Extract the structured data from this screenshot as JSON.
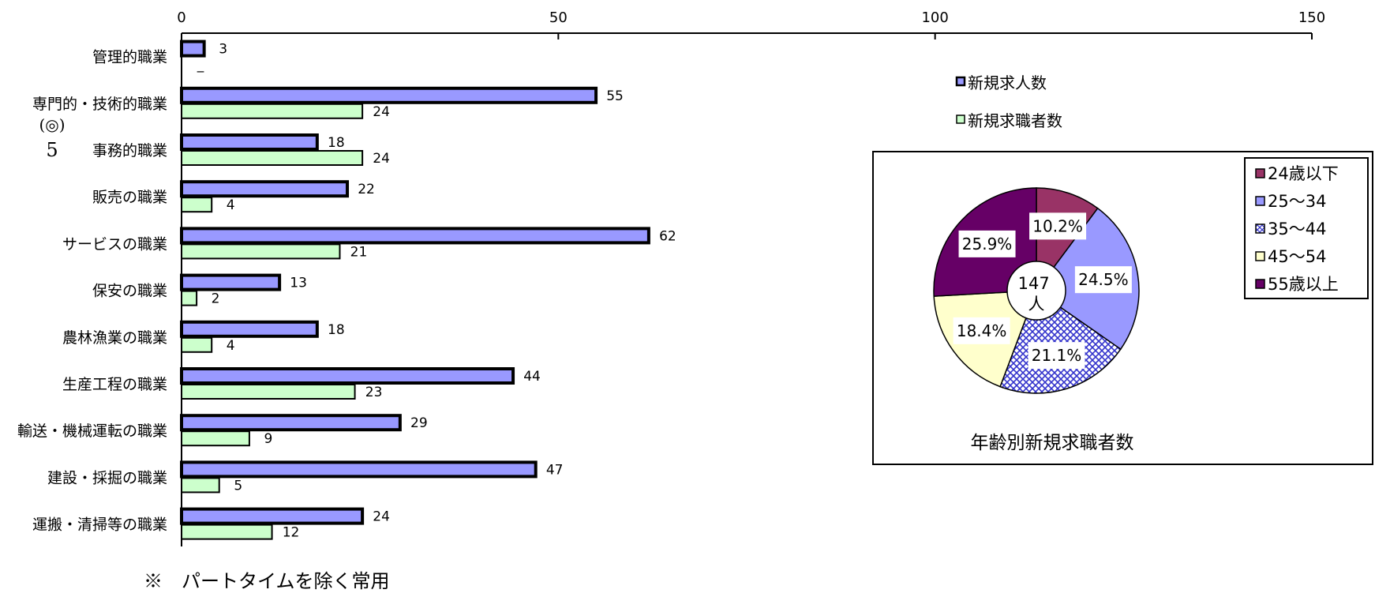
{
  "chart_data": [
    {
      "type": "bar",
      "orientation": "horizontal",
      "categories": [
        "管理的職業",
        "専門的・技術的職業",
        "事務的職業",
        "販売の職業",
        "サービスの職業",
        "保安の職業",
        "農林漁業の職業",
        "生産工程の職業",
        "輸送・機械運転の職業",
        "建設・採掘の職業",
        "運搬・清掃等の職業"
      ],
      "series": [
        {
          "name": "新規求人数",
          "color": "#9999ff",
          "values": [
            3,
            55,
            18,
            22,
            62,
            13,
            18,
            44,
            29,
            47,
            24
          ],
          "labels": [
            "3",
            "55",
            "18",
            "22",
            "62",
            "13",
            "18",
            "44",
            "29",
            "47",
            "24"
          ]
        },
        {
          "name": "新規求職者数",
          "color": "#ccffcc",
          "values": [
            0,
            24,
            24,
            4,
            21,
            2,
            4,
            23,
            9,
            5,
            12
          ],
          "labels": [
            "_",
            "24",
            "24",
            "4",
            "21",
            "2",
            "4",
            "23",
            "9",
            "5",
            "12"
          ]
        }
      ],
      "xlim": [
        0,
        150
      ],
      "xticks": [
        "0",
        "50",
        "100",
        "150"
      ],
      "legend_position": "right",
      "grid": false
    },
    {
      "type": "pie",
      "title": "年齢別新規求職者数",
      "center_label": "147\n人",
      "slices": [
        {
          "label": "24歳以下",
          "value": 10.2,
          "text": "10.2%",
          "color": "#993366",
          "pattern": "solid"
        },
        {
          "label": "25～34",
          "value": 24.5,
          "text": "24.5%",
          "color": "#9999ff",
          "pattern": "solid"
        },
        {
          "label": "35～44",
          "value": 21.1,
          "text": "21.1%",
          "color": "#3333cc",
          "pattern": "crosshatch"
        },
        {
          "label": "45～54",
          "value": 18.4,
          "text": "18.4%",
          "color": "#ffffcc",
          "pattern": "solid"
        },
        {
          "label": "55歳以上",
          "value": 25.9,
          "text": "25.9%",
          "color": "#660066",
          "pattern": "solid"
        }
      ],
      "legend_position": "top-right"
    }
  ],
  "side_marks": {
    "circle": "(◎)",
    "number": "5"
  },
  "footnote": "※　パートタイムを除く常用"
}
